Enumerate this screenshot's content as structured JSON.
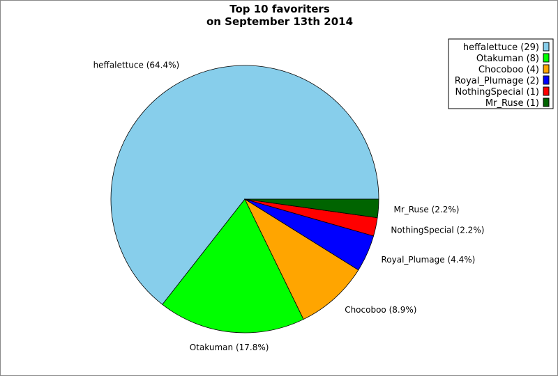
{
  "chart_data": {
    "type": "pie",
    "title": [
      "Top 10 favoriters",
      "on September 13th 2014"
    ],
    "slices": [
      {
        "name": "heffalettuce",
        "value": 29,
        "percent": 64.4,
        "color": "#87CEEB",
        "label": "heffalettuce (64.4%)",
        "legend": "heffalettuce (29)"
      },
      {
        "name": "Otakuman",
        "value": 8,
        "percent": 17.8,
        "color": "#00FF00",
        "label": "Otakuman (17.8%)",
        "legend": "Otakuman (8)"
      },
      {
        "name": "Chocoboo",
        "value": 4,
        "percent": 8.9,
        "color": "#FFA500",
        "label": "Chocoboo (8.9%)",
        "legend": "Chocoboo (4)"
      },
      {
        "name": "Royal_Plumage",
        "value": 2,
        "percent": 4.4,
        "color": "#0000FF",
        "label": "Royal_Plumage (4.4%)",
        "legend": "Royal_Plumage (2)"
      },
      {
        "name": "NothingSpecial",
        "value": 1,
        "percent": 2.2,
        "color": "#FF0000",
        "label": "NothingSpecial (2.2%)",
        "legend": "NothingSpecial (1)"
      },
      {
        "name": "Mr_Ruse",
        "value": 1,
        "percent": 2.2,
        "color": "#006400",
        "label": "Mr_Ruse (2.2%)",
        "legend": "Mr_Ruse (1)"
      }
    ],
    "start_angle": "east, counterclockwise",
    "legend_placement": "top-right"
  }
}
